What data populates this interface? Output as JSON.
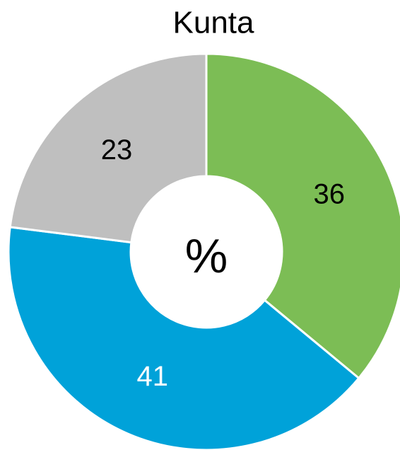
{
  "chart_data": {
    "type": "donut",
    "title": "Kunta",
    "center_label": "%",
    "values": [
      36,
      41,
      23
    ],
    "colors": [
      "#7cbd55",
      "#00a2d9",
      "#bfbfbf"
    ],
    "label_colors": [
      "#000000",
      "#ffffff",
      "#000000"
    ]
  }
}
